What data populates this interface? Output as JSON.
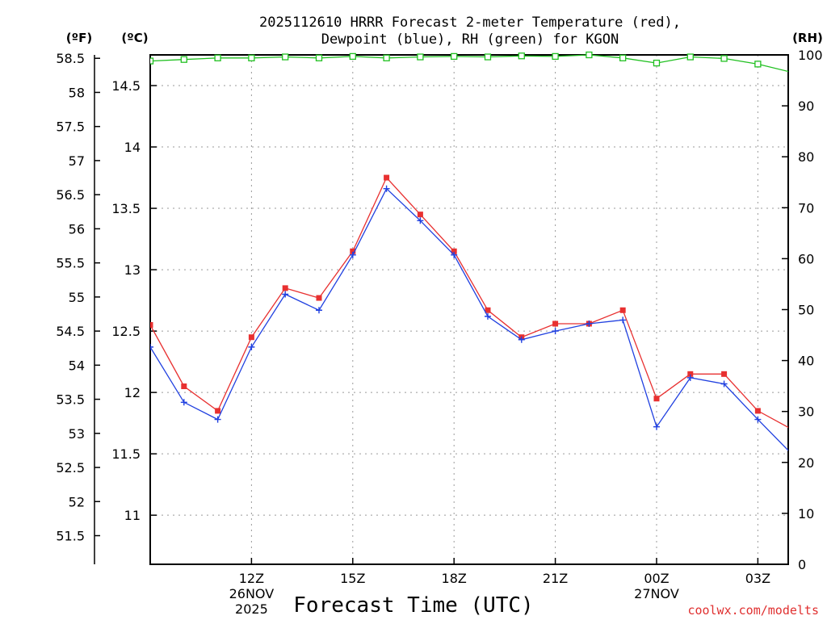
{
  "chart_data": {
    "type": "line",
    "title_line1": "2025112610 HRRR Forecast 2-meter Temperature (red),",
    "title_line2": "Dewpoint (blue), RH (green) for KGON",
    "xlabel": "Forecast Time (UTC)",
    "credit": "coolwx.com/modelts",
    "units": {
      "fahrenheit": "(ºF)",
      "celsius": "(ºC)",
      "rh": "(RH)"
    },
    "x_hours": [
      9,
      10,
      11,
      12,
      13,
      14,
      15,
      16,
      17,
      18,
      19,
      20,
      21,
      22,
      23,
      24,
      25,
      26,
      27,
      28
    ],
    "xlim": [
      9,
      27.9
    ],
    "x_ticks": [
      {
        "hour": 12,
        "label": "12Z",
        "date": "26NOV",
        "year": "2025"
      },
      {
        "hour": 15,
        "label": "15Z",
        "date": "",
        "year": ""
      },
      {
        "hour": 18,
        "label": "18Z",
        "date": "",
        "year": ""
      },
      {
        "hour": 21,
        "label": "21Z",
        "date": "",
        "year": ""
      },
      {
        "hour": 24,
        "label": "00Z",
        "date": "27NOV",
        "year": ""
      },
      {
        "hour": 27,
        "label": "03Z",
        "date": "",
        "year": ""
      }
    ],
    "celsius_axis": {
      "ylim": [
        10.6,
        14.75
      ],
      "ticks": [
        "11",
        "11.5",
        "12",
        "12.5",
        "13",
        "13.5",
        "14",
        "14.5"
      ]
    },
    "fahrenheit_axis": {
      "ylim": [
        51.08,
        58.55
      ],
      "ticks": [
        "51.5",
        "52",
        "52.5",
        "53",
        "53.5",
        "54",
        "54.5",
        "55",
        "55.5",
        "56",
        "56.5",
        "57",
        "57.5",
        "58",
        "58.5"
      ]
    },
    "rh_axis": {
      "ylim": [
        0,
        100
      ],
      "ticks": [
        "0",
        "10",
        "20",
        "30",
        "40",
        "50",
        "60",
        "70",
        "80",
        "90",
        "100"
      ]
    },
    "series": [
      {
        "name": "Temperature",
        "axis": "celsius",
        "color": "#e83030",
        "marker": "square",
        "values": [
          12.55,
          12.05,
          11.85,
          12.45,
          12.85,
          12.77,
          13.15,
          13.75,
          13.45,
          13.15,
          12.67,
          12.45,
          12.56,
          12.56,
          12.67,
          11.95,
          12.15,
          12.15,
          11.85,
          11.7
        ]
      },
      {
        "name": "Dewpoint",
        "axis": "celsius",
        "color": "#2040e0",
        "marker": "plus",
        "values": [
          12.37,
          11.92,
          11.78,
          12.37,
          12.8,
          12.67,
          13.12,
          13.66,
          13.4,
          13.12,
          12.62,
          12.43,
          12.5,
          12.56,
          12.59,
          11.72,
          12.12,
          12.07,
          11.78,
          11.5
        ]
      },
      {
        "name": "RH",
        "axis": "rh",
        "color": "#20c020",
        "marker": "open-square",
        "values": [
          98.8,
          99.1,
          99.4,
          99.4,
          99.6,
          99.4,
          99.7,
          99.4,
          99.6,
          99.7,
          99.6,
          99.8,
          99.7,
          100,
          99.4,
          98.4,
          99.6,
          99.3,
          98.2,
          96.6
        ]
      }
    ]
  }
}
